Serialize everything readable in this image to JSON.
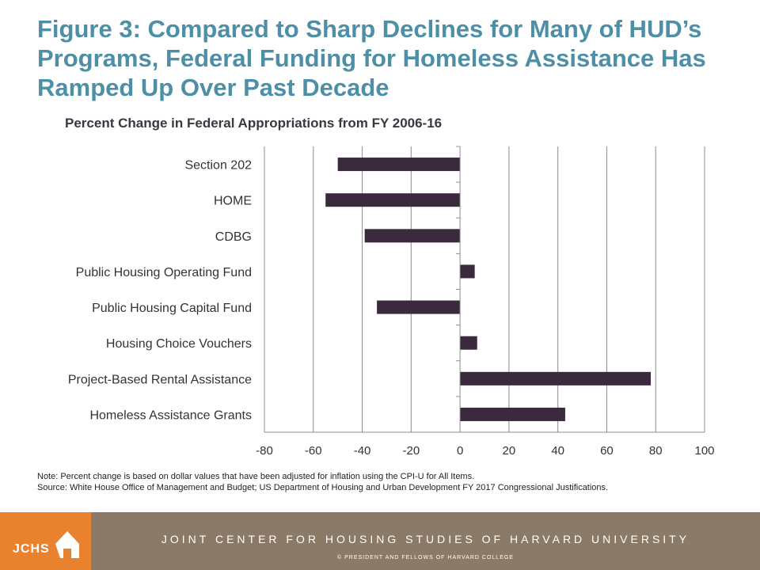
{
  "chart_data": {
    "type": "bar",
    "orientation": "horizontal",
    "title": "Figure 3: Compared to Sharp Declines for Many of HUD’s Programs, Federal Funding for Homeless Assistance Has Ramped Up Over Past Decade",
    "subtitle": "Percent Change in Federal Appropriations from FY 2006-16",
    "categories": [
      "Section 202",
      "HOME",
      "CDBG",
      "Public Housing Operating Fund",
      "Public Housing Capital Fund",
      "Housing Choice Vouchers",
      "Project-Based Rental Assistance",
      "Homeless Assistance Grants"
    ],
    "values": [
      -50,
      -55,
      -39,
      6,
      -34,
      7,
      78,
      43
    ],
    "xlim": [
      -80,
      100
    ],
    "xticks": [
      "-80",
      "-60",
      "-40",
      "-20",
      "0",
      "20",
      "40",
      "60",
      "80",
      "100"
    ],
    "grid": "vertical",
    "legend": "none",
    "bar_color": "#3b2a3d",
    "grid_color": "#8c8c8c"
  },
  "note": "Note: Percent change is based on dollar values that have been adjusted for inflation using the CPI-U for All Items.",
  "source": "Source: White House Office of Management and Budget; US Department of Housing and Urban Development FY 2017 Congressional Justifications.",
  "footer": {
    "logo_text": "JCHS",
    "name": "JOINT CENTER FOR HOUSING STUDIES OF HARVARD UNIVERSITY",
    "copyright": "© PRESIDENT AND FELLOWS OF HARVARD COLLEGE"
  },
  "colors": {
    "title": "#4e8fa8",
    "logo_bg": "#e8822e",
    "band_bg": "#8b7a68"
  }
}
